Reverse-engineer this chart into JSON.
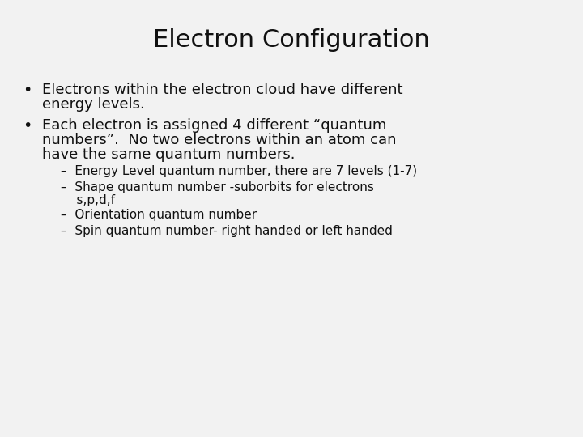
{
  "title": "Electron Configuration",
  "background_color": "#f2f2f2",
  "title_fontsize": 22,
  "title_color": "#111111",
  "bullet_fontsize": 13,
  "sub_fontsize": 11,
  "bullet_color": "#111111",
  "bullet1_line1": "Electrons within the electron cloud have different",
  "bullet1_line2": "energy levels.",
  "bullet2_line1": "Each electron is assigned 4 different “quantum",
  "bullet2_line2": "numbers”.  No two electrons within an atom can",
  "bullet2_line3": "have the same quantum numbers.",
  "sub1": "–  Energy Level quantum number, there are 7 levels (1-7)",
  "sub2_line1": "–  Shape quantum number -suborbits for electrons",
  "sub2_line2": "    s,p,d,f",
  "sub3": "–  Orientation quantum number",
  "sub4": "–  Spin quantum number- right handed or left handed"
}
